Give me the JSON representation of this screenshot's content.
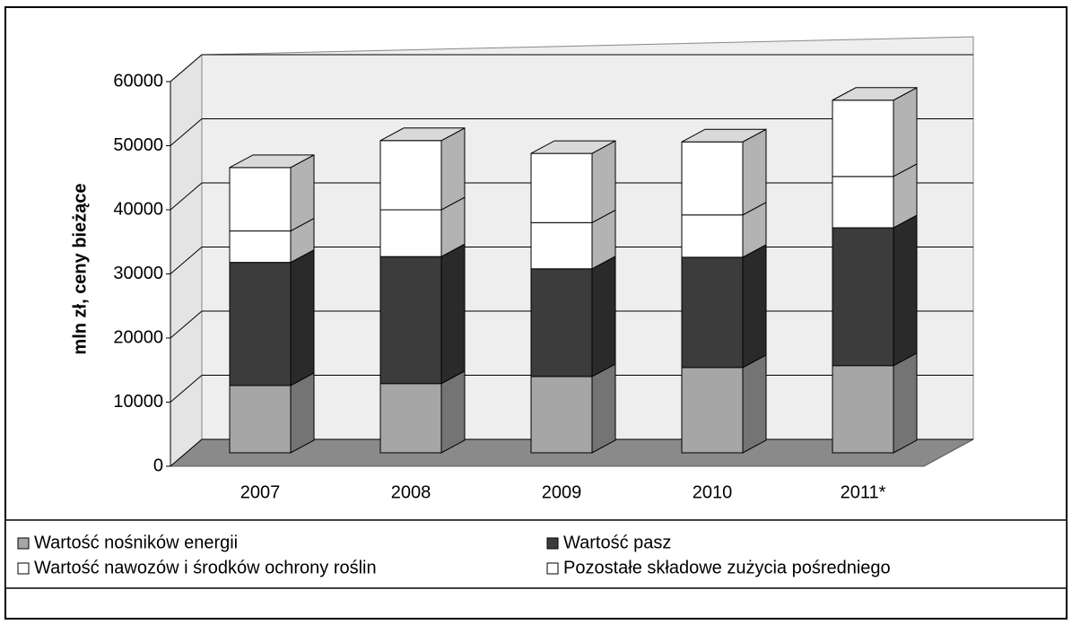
{
  "chart_data": {
    "type": "bar3d-stacked",
    "y_label": "mln zł, ceny bieżące",
    "categories": [
      "2007",
      "2008",
      "2009",
      "2010",
      "2011*"
    ],
    "series": [
      {
        "name": "Wartość nośników energii",
        "color": "#a6a6a6",
        "values": [
          10500,
          10800,
          11900,
          13300,
          13600
        ]
      },
      {
        "name": "Wartość pasz",
        "color": "#3c3c3c",
        "values": [
          19200,
          19800,
          16800,
          17200,
          21500
        ]
      },
      {
        "name": "Wartość nawozów i środków ochrony roślin",
        "color": "#ffffff",
        "values": [
          4900,
          7300,
          7200,
          6600,
          8000
        ]
      },
      {
        "name": "Pozostałe składowe zużycia pośredniego",
        "color": "#ffffff",
        "values": [
          9900,
          10800,
          10800,
          11400,
          11900
        ]
      }
    ],
    "ylim": [
      0,
      60000
    ],
    "yticks": [
      0,
      10000,
      20000,
      30000,
      40000,
      50000,
      60000
    ],
    "grid": true
  }
}
